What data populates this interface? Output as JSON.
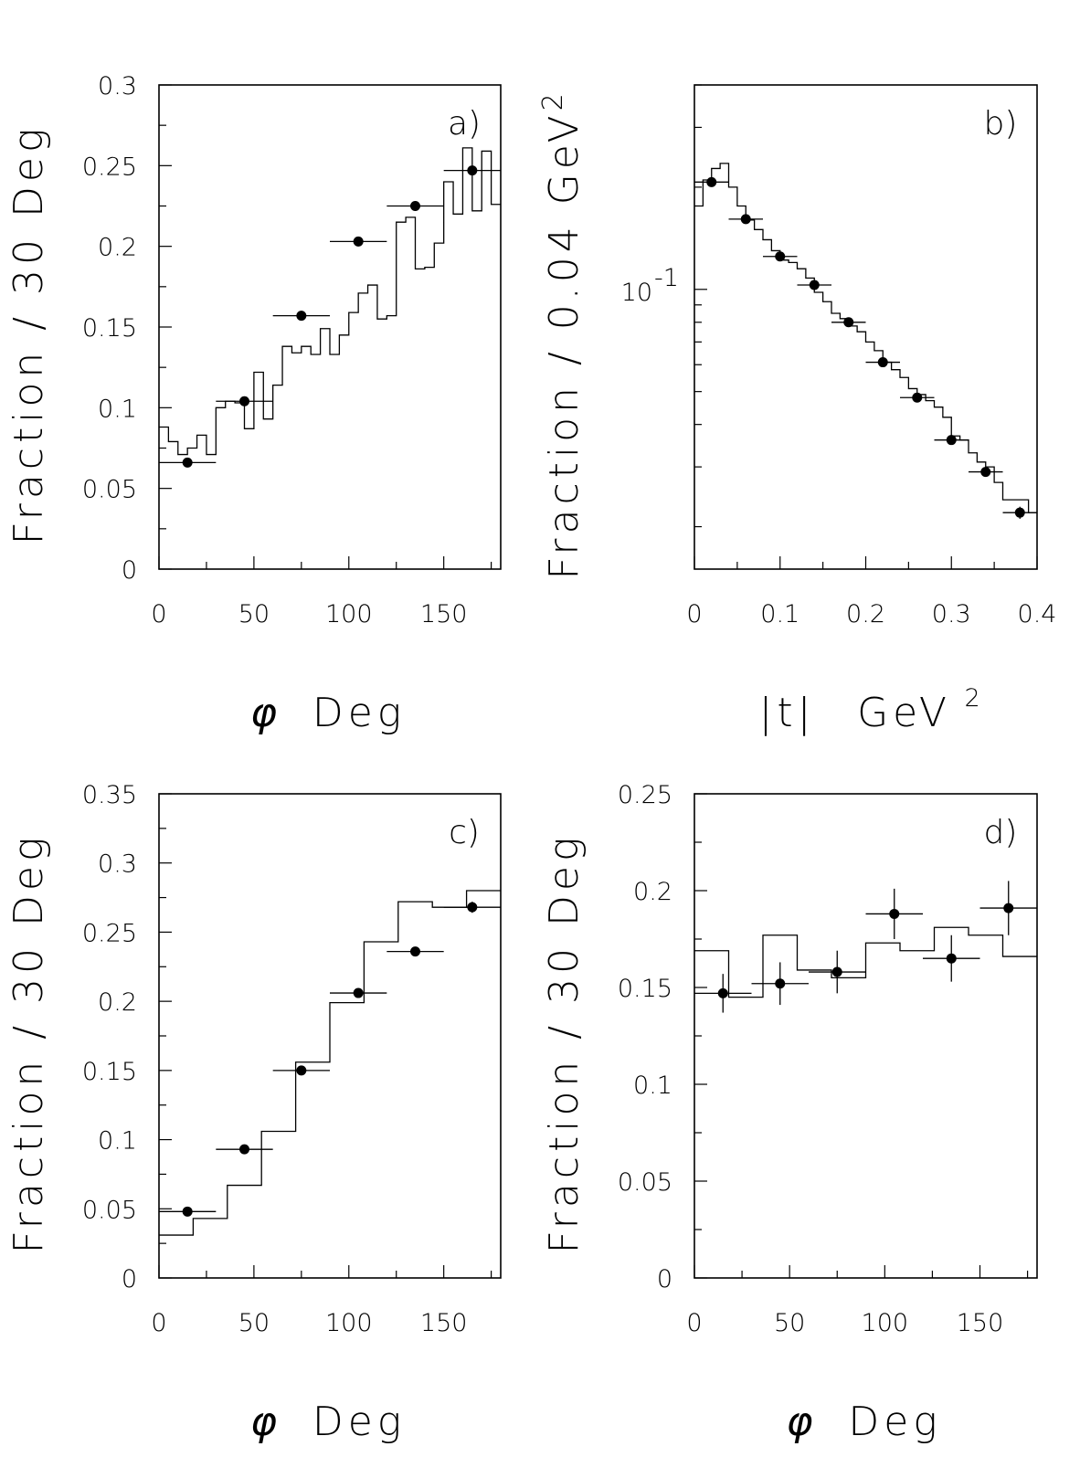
{
  "chart_data": [
    {
      "panel": "a)",
      "type": "scatter",
      "xlabel_symbol": "φ",
      "xlabel": "Deg",
      "ylabel": "Fraction / 30 Deg",
      "xlim": [
        0,
        180
      ],
      "ylim": [
        0,
        0.3
      ],
      "xticks": [
        0,
        50,
        100,
        150
      ],
      "xtick_labels": [
        "0",
        "50",
        "100",
        "150"
      ],
      "yticks": [
        0,
        0.05,
        0.1,
        0.15,
        0.2,
        0.25,
        0.3
      ],
      "ytick_labels": [
        "0",
        "0.05",
        "0.1",
        "0.15",
        "0.2",
        "0.25",
        "0.3"
      ],
      "yscale": "linear",
      "grid": false,
      "series": [
        {
          "kind": "points",
          "x": [
            15,
            45,
            75,
            105,
            135,
            165
          ],
          "y": [
            0.066,
            0.104,
            0.157,
            0.203,
            0.225,
            0.247
          ],
          "xerr": [
            15,
            15,
            15,
            15,
            15,
            15
          ],
          "yerr": [
            0.002,
            0.003,
            0.003,
            0.003,
            0.003,
            0.003
          ]
        },
        {
          "kind": "histogram",
          "edges": [
            0,
            5,
            10,
            15,
            20,
            25,
            30,
            35,
            40,
            45,
            50,
            55,
            60,
            65,
            70,
            75,
            80,
            85,
            90,
            95,
            100,
            105,
            110,
            115,
            120,
            125,
            130,
            135,
            140,
            145,
            150,
            155,
            160,
            165,
            170,
            175,
            180
          ],
          "values": [
            0.088,
            0.079,
            0.071,
            0.075,
            0.083,
            0.071,
            0.1,
            0.104,
            0.103,
            0.087,
            0.122,
            0.093,
            0.114,
            0.138,
            0.134,
            0.138,
            0.133,
            0.149,
            0.133,
            0.145,
            0.159,
            0.171,
            0.176,
            0.155,
            0.157,
            0.215,
            0.218,
            0.186,
            0.187,
            0.202,
            0.24,
            0.22,
            0.261,
            0.222,
            0.259,
            0.226
          ]
        }
      ]
    },
    {
      "panel": "b)",
      "type": "scatter",
      "xlabel_symbol": "|t|",
      "xlabel": "GeV",
      "xlabel_sup": "2",
      "ylabel": "Fraction / 0.04 GeV",
      "ylabel_sup": "2",
      "xlim": [
        0,
        0.4
      ],
      "ylim": [
        0.015,
        0.4
      ],
      "xticks": [
        0,
        0.1,
        0.2,
        0.3,
        0.4
      ],
      "xtick_labels": [
        "0",
        "0.1",
        "0.2",
        "0.3",
        "0.4"
      ],
      "ytick_label": "10",
      "ytick_label_sup": "-1",
      "ytick_label_value": 0.1,
      "yscale": "log",
      "grid": false,
      "series": [
        {
          "kind": "points",
          "x": [
            0.02,
            0.06,
            0.1,
            0.14,
            0.18,
            0.22,
            0.26,
            0.3,
            0.34,
            0.38
          ],
          "y": [
            0.207,
            0.161,
            0.125,
            0.103,
            0.08,
            0.061,
            0.048,
            0.036,
            0.029,
            0.022
          ],
          "xerr": [
            0.02,
            0.02,
            0.02,
            0.02,
            0.02,
            0.02,
            0.02,
            0.02,
            0.02,
            0.02
          ],
          "yerr": [
            0.004,
            0.003,
            0.003,
            0.002,
            0.002,
            0.0015,
            0.0012,
            0.0011,
            0.0009,
            0.0009
          ]
        },
        {
          "kind": "histogram",
          "edges": [
            0,
            0.01,
            0.02,
            0.03,
            0.04,
            0.05,
            0.06,
            0.07,
            0.08,
            0.09,
            0.1,
            0.11,
            0.12,
            0.13,
            0.14,
            0.15,
            0.16,
            0.17,
            0.18,
            0.19,
            0.2,
            0.21,
            0.22,
            0.23,
            0.24,
            0.25,
            0.26,
            0.27,
            0.28,
            0.29,
            0.3,
            0.31,
            0.32,
            0.33,
            0.34,
            0.35,
            0.36,
            0.37,
            0.38,
            0.39,
            0.4
          ],
          "values": [
            0.176,
            0.21,
            0.227,
            0.235,
            0.2,
            0.176,
            0.16,
            0.15,
            0.14,
            0.13,
            0.122,
            0.12,
            0.115,
            0.108,
            0.098,
            0.092,
            0.085,
            0.082,
            0.078,
            0.075,
            0.07,
            0.066,
            0.061,
            0.058,
            0.055,
            0.051,
            0.049,
            0.047,
            0.045,
            0.042,
            0.037,
            0.036,
            0.033,
            0.031,
            0.03,
            0.027,
            0.024,
            0.024,
            0.024,
            0.022
          ]
        }
      ]
    },
    {
      "panel": "c)",
      "type": "scatter",
      "xlabel_symbol": "φ",
      "xlabel": "Deg",
      "ylabel": "Fraction / 30 Deg",
      "xlim": [
        0,
        180
      ],
      "ylim": [
        0,
        0.35
      ],
      "xticks": [
        0,
        50,
        100,
        150
      ],
      "xtick_labels": [
        "0",
        "50",
        "100",
        "150"
      ],
      "yticks": [
        0,
        0.05,
        0.1,
        0.15,
        0.2,
        0.25,
        0.3,
        0.35
      ],
      "ytick_labels": [
        "0",
        "0.05",
        "0.1",
        "0.15",
        "0.2",
        "0.25",
        "0.3",
        "0.35"
      ],
      "yscale": "linear",
      "grid": false,
      "series": [
        {
          "kind": "points",
          "x": [
            15,
            45,
            75,
            105,
            135,
            165
          ],
          "y": [
            0.048,
            0.093,
            0.15,
            0.206,
            0.236,
            0.268
          ],
          "xerr": [
            15,
            15,
            15,
            15,
            15,
            15
          ],
          "yerr": [
            0.002,
            0.002,
            0.003,
            0.003,
            0.003,
            0.004
          ]
        },
        {
          "kind": "histogram",
          "edges": [
            0,
            18,
            36,
            54,
            72,
            90,
            108,
            126,
            144,
            162,
            180
          ],
          "values": [
            0.031,
            0.043,
            0.067,
            0.106,
            0.156,
            0.199,
            0.243,
            0.272,
            0.268,
            0.28
          ]
        }
      ]
    },
    {
      "panel": "d)",
      "type": "scatter",
      "xlabel_symbol": "φ",
      "xlabel": "Deg",
      "ylabel": "Fraction / 30 Deg",
      "xlim": [
        0,
        180
      ],
      "ylim": [
        0,
        0.25
      ],
      "xticks": [
        0,
        50,
        100,
        150
      ],
      "xtick_labels": [
        "0",
        "50",
        "100",
        "150"
      ],
      "yticks": [
        0,
        0.05,
        0.1,
        0.15,
        0.2,
        0.25
      ],
      "ytick_labels": [
        "0",
        "0.05",
        "0.1",
        "0.15",
        "0.2",
        "0.25"
      ],
      "yscale": "linear",
      "grid": false,
      "series": [
        {
          "kind": "points",
          "x": [
            15,
            45,
            75,
            105,
            135,
            165
          ],
          "y": [
            0.147,
            0.152,
            0.158,
            0.188,
            0.165,
            0.191
          ],
          "xerr": [
            15,
            15,
            15,
            15,
            15,
            15
          ],
          "yerr": [
            0.01,
            0.011,
            0.011,
            0.013,
            0.012,
            0.014
          ]
        },
        {
          "kind": "histogram",
          "edges": [
            0,
            18,
            36,
            54,
            72,
            90,
            108,
            126,
            144,
            162,
            180
          ],
          "values": [
            0.169,
            0.145,
            0.177,
            0.159,
            0.155,
            0.173,
            0.169,
            0.181,
            0.177,
            0.166
          ]
        }
      ]
    }
  ]
}
